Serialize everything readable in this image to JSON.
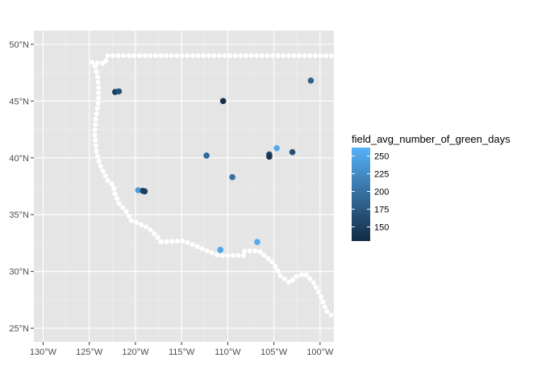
{
  "chart_data": {
    "type": "scatter",
    "x_unit": "longitude",
    "y_unit": "latitude",
    "xlim": [
      -131,
      -98.5
    ],
    "ylim": [
      23.8,
      51.2
    ],
    "grid": true,
    "legend_position": "right",
    "x_ticks": [
      {
        "value": -130,
        "label": "130°W"
      },
      {
        "value": -125,
        "label": "125°W"
      },
      {
        "value": -120,
        "label": "120°W"
      },
      {
        "value": -115,
        "label": "115°W"
      },
      {
        "value": -110,
        "label": "110°W"
      },
      {
        "value": -105,
        "label": "105°W"
      },
      {
        "value": -100,
        "label": "100°W"
      }
    ],
    "y_ticks": [
      {
        "value": 25,
        "label": "25°N"
      },
      {
        "value": 30,
        "label": "30°N"
      },
      {
        "value": 35,
        "label": "35°N"
      },
      {
        "value": 40,
        "label": "40°N"
      },
      {
        "value": 45,
        "label": "45°N"
      },
      {
        "value": 50,
        "label": "50°N"
      }
    ],
    "legend": {
      "title": "field_avg_number_of_green_days",
      "min": 130,
      "max": 262,
      "color_low": "#132B43",
      "color_high": "#56B1F7",
      "ticks": [
        {
          "value": 150,
          "label": "150"
        },
        {
          "value": 175,
          "label": "175"
        },
        {
          "value": 200,
          "label": "200"
        },
        {
          "value": 225,
          "label": "225"
        },
        {
          "value": 250,
          "label": "250"
        }
      ]
    },
    "boundary_color": "#ffffff",
    "boundary_lines": [
      [
        [
          -124.7,
          48.4
        ],
        [
          -124.4,
          48.2
        ],
        [
          -124.1,
          47.2
        ],
        [
          -124.0,
          46.3
        ],
        [
          -124.0,
          45.0
        ],
        [
          -124.3,
          43.4
        ],
        [
          -124.4,
          42.0
        ],
        [
          -124.2,
          40.4
        ],
        [
          -123.8,
          39.3
        ],
        [
          -123.0,
          38.0
        ],
        [
          -122.4,
          37.6
        ],
        [
          -122.2,
          36.8
        ],
        [
          -121.8,
          36.0
        ],
        [
          -120.9,
          35.2
        ],
        [
          -120.5,
          34.5
        ],
        [
          -119.0,
          34.0
        ],
        [
          -118.4,
          33.7
        ],
        [
          -117.8,
          33.2
        ],
        [
          -117.2,
          32.6
        ]
      ],
      [
        [
          -117.2,
          32.6
        ],
        [
          -114.8,
          32.7
        ],
        [
          -111.0,
          31.4
        ],
        [
          -108.2,
          31.4
        ],
        [
          -108.2,
          31.8
        ],
        [
          -106.6,
          31.8
        ],
        [
          -105.0,
          30.7
        ],
        [
          -104.3,
          29.6
        ],
        [
          -103.3,
          29.0
        ],
        [
          -102.5,
          29.6
        ],
        [
          -101.6,
          29.8
        ],
        [
          -100.6,
          28.9
        ],
        [
          -99.8,
          27.6
        ],
        [
          -99.3,
          26.5
        ],
        [
          -98.6,
          26.0
        ]
      ],
      [
        [
          -124.7,
          48.4
        ],
        [
          -123.3,
          48.3
        ],
        [
          -123.0,
          49.0
        ],
        [
          -115.0,
          49.0
        ],
        [
          -105.0,
          49.0
        ],
        [
          -95.0,
          49.0
        ]
      ]
    ],
    "points": [
      {
        "lon": -122.2,
        "lat": 45.8,
        "value": 150
      },
      {
        "lon": -121.8,
        "lat": 45.85,
        "value": 165
      },
      {
        "lon": -110.5,
        "lat": 45.0,
        "value": 135
      },
      {
        "lon": -101.0,
        "lat": 46.8,
        "value": 185
      },
      {
        "lon": -112.3,
        "lat": 40.2,
        "value": 190
      },
      {
        "lon": -104.7,
        "lat": 40.85,
        "value": 255
      },
      {
        "lon": -105.5,
        "lat": 40.3,
        "value": 160
      },
      {
        "lon": -105.5,
        "lat": 40.1,
        "value": 140
      },
      {
        "lon": -103.0,
        "lat": 40.5,
        "value": 165
      },
      {
        "lon": -109.5,
        "lat": 38.3,
        "value": 200
      },
      {
        "lon": -119.7,
        "lat": 37.15,
        "value": 245
      },
      {
        "lon": -119.2,
        "lat": 37.1,
        "value": 160
      },
      {
        "lon": -119.0,
        "lat": 37.05,
        "value": 150
      },
      {
        "lon": -110.8,
        "lat": 31.9,
        "value": 250
      },
      {
        "lon": -106.8,
        "lat": 32.6,
        "value": 255
      }
    ]
  }
}
